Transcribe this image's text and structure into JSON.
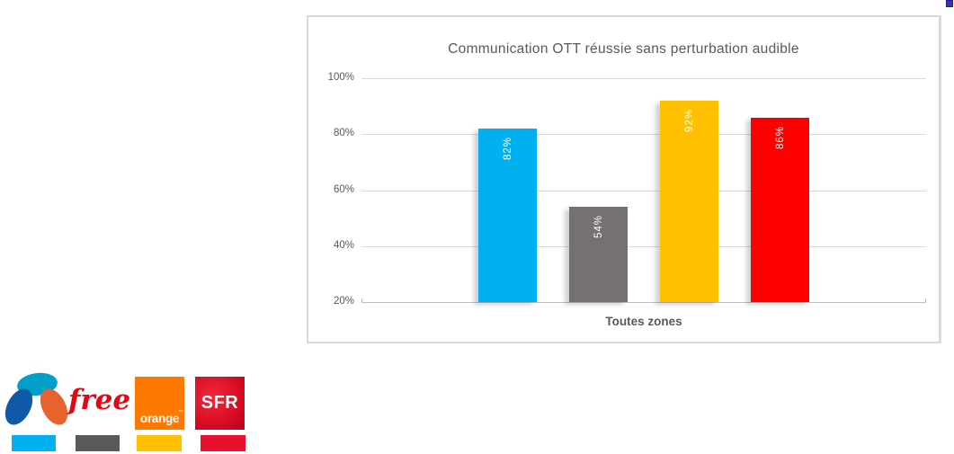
{
  "chart": {
    "frame_border_color": "#d9d9d9",
    "gridline_color": "#d9d9d9",
    "text_color": "#595959"
  },
  "chart_data": {
    "type": "bar",
    "title": "Communication OTT réussie sans perturbation audible",
    "categories": [
      "Toutes zones"
    ],
    "series": [
      {
        "name": "Bouygues Telecom",
        "values": [
          82
        ],
        "label": "82%",
        "color": "#00b0f0"
      },
      {
        "name": "Free",
        "values": [
          54
        ],
        "label": "54%",
        "color": "#767171"
      },
      {
        "name": "Orange",
        "values": [
          92
        ],
        "label": "92%",
        "color": "#ffc000"
      },
      {
        "name": "SFR",
        "values": [
          86
        ],
        "label": "86%",
        "color": "#ff0000"
      }
    ],
    "xlabel": "",
    "ylabel": "",
    "ylim": [
      20,
      100
    ],
    "ytick_labels": [
      "20%",
      "40%",
      "60%",
      "80%",
      "100%"
    ],
    "grid": true,
    "legend_position": "below-left-as-logos",
    "data_labels": "inside-end-vertical"
  },
  "legend": {
    "operators": [
      {
        "name": "Bouygues Telecom",
        "swatch_color": "#00b0f0"
      },
      {
        "name": "Free",
        "swatch_color": "#595959",
        "wordmark": "free",
        "wordmark_color": "#e30613"
      },
      {
        "name": "Orange",
        "swatch_color": "#ffc000",
        "logo_text": "orange",
        "trademark": "™",
        "logo_bg": "#ff7900"
      },
      {
        "name": "SFR",
        "swatch_color": "#e8112d",
        "logo_text": "SFR",
        "logo_bg": "#da0e26"
      }
    ]
  }
}
